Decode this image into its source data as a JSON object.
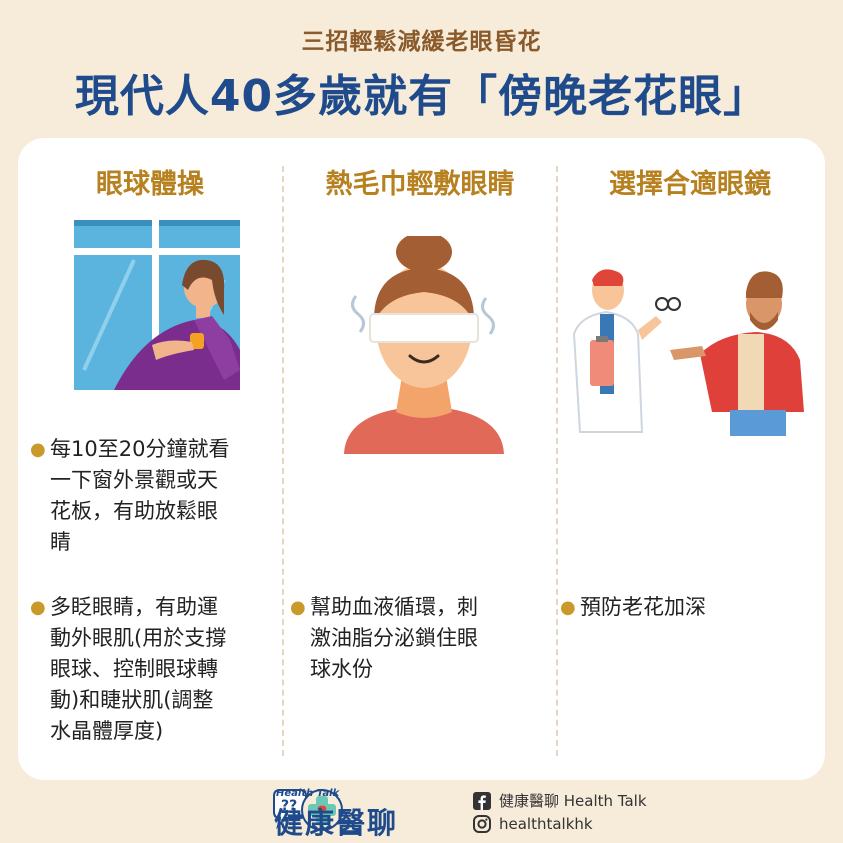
{
  "header": {
    "subtitle": "三招輕鬆減緩老眼昏花",
    "title": "現代人40多歲就有「傍晚老花眼」"
  },
  "columns": [
    {
      "title": "眼球體操",
      "bullets": [
        [
          "每10至20分鐘就看",
          "一下窗外景觀或天",
          "花板，有助放鬆眼",
          "睛"
        ],
        [
          "多眨眼睛，有助運",
          "動外眼肌(用於支撐",
          "眼球、控制眼球轉",
          "動)和睫狀肌(調整",
          "水晶體厚度)"
        ]
      ]
    },
    {
      "title": "熱毛巾輕敷眼睛",
      "bullets": [
        [
          "幫助血液循環，刺",
          "激油脂分泌鎖住眼",
          "球水份"
        ]
      ]
    },
    {
      "title": "選擇合適眼鏡",
      "bullets": [
        [
          "預防老花加深"
        ]
      ]
    }
  ],
  "footer": {
    "logo_small": "Health Talk",
    "logo_big": "健康醫聊",
    "facebook": "健康醫聊 Health Talk",
    "instagram": "healthtalkhk"
  },
  "colors": {
    "background": "#f6ecd9",
    "title": "#1f4b8c",
    "subtitle": "#8a5a2b",
    "column_title": "#b78120",
    "bullet": "#c99a2a"
  }
}
